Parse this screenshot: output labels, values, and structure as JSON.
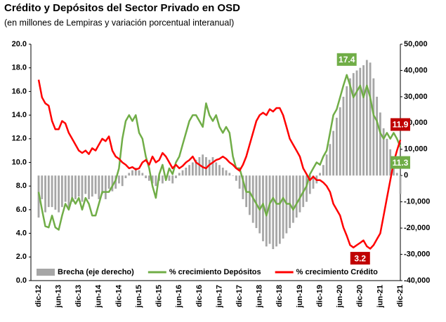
{
  "chart_data": {
    "type": "bar_line",
    "title": "Crédito y Depósitos del Sector Privado en OSD",
    "subtitle": "(en millones de Lempiras y variación porcentual interanual)",
    "categories": [
      "dic-12",
      null,
      null,
      null,
      null,
      null,
      "jun-13",
      null,
      null,
      null,
      null,
      null,
      "dic-13",
      null,
      null,
      null,
      null,
      null,
      "jun-14",
      null,
      null,
      null,
      null,
      null,
      "dic-14",
      null,
      null,
      null,
      null,
      null,
      "jun-15",
      null,
      null,
      null,
      null,
      null,
      "dic-15",
      null,
      null,
      null,
      null,
      null,
      "jun-16",
      null,
      null,
      null,
      null,
      null,
      "dic-16",
      null,
      null,
      null,
      null,
      null,
      "jun-17",
      null,
      null,
      null,
      null,
      null,
      "dic-17",
      null,
      null,
      null,
      null,
      null,
      "jun-18",
      null,
      null,
      null,
      null,
      null,
      "dic-18",
      null,
      null,
      null,
      null,
      null,
      "jun-19",
      null,
      null,
      null,
      null,
      null,
      "dic-19",
      null,
      null,
      null,
      null,
      null,
      "jun-20",
      null,
      null,
      null,
      null,
      null,
      "dic-20",
      null,
      null,
      null,
      null,
      null,
      "jun-21",
      null,
      null,
      null,
      null,
      null,
      "dic-21"
    ],
    "series": [
      {
        "name": "Brecha (eje derecho)",
        "type": "bar",
        "axis": "y2",
        "color": "#a6a6a6",
        "values": [
          -16000,
          -9000,
          -14000,
          -12000,
          -12000,
          -13000,
          -14000,
          -12000,
          -10000,
          -12000,
          -10000,
          -9000,
          -8000,
          -10000,
          -7000,
          -9000,
          -8000,
          -7000,
          -9000,
          -7000,
          -9000,
          -5000,
          -6000,
          -5000,
          -3000,
          -4000,
          -1000,
          1000,
          2000,
          3000,
          2000,
          1000,
          -1000,
          -2000,
          -3000,
          -4000,
          -2000,
          -3000,
          -1000,
          -2000,
          -3000,
          -1000,
          1000,
          2000,
          3000,
          4000,
          5000,
          6000,
          7000,
          8000,
          7000,
          6000,
          7000,
          5000,
          4000,
          3000,
          2000,
          1000,
          0,
          -2000,
          -5000,
          -9000,
          -12000,
          -15000,
          -18000,
          -20000,
          -22000,
          -25000,
          -27000,
          -26000,
          -28000,
          -27000,
          -26000,
          -24000,
          -22000,
          -20000,
          -18000,
          -16000,
          -14000,
          -12000,
          -10000,
          -7000,
          -5000,
          -3000,
          1000,
          4000,
          8000,
          12000,
          17000,
          22000,
          26000,
          30000,
          34000,
          37000,
          39000,
          40000,
          41000,
          42000,
          44000,
          43000,
          37000,
          30000,
          24000,
          18000,
          14000,
          10000,
          6000,
          1000,
          -7000
        ]
      },
      {
        "name": "% crecimiento Depósitos",
        "type": "line",
        "color": "#70ad47",
        "values": [
          7.5,
          6.0,
          4.6,
          4.5,
          5.5,
          4.5,
          4.3,
          5.5,
          6.5,
          6.0,
          7.0,
          6.5,
          7.0,
          6.0,
          7.0,
          6.5,
          5.5,
          5.5,
          6.5,
          7.5,
          7.5,
          7.5,
          8.0,
          8.5,
          9.5,
          12.0,
          13.5,
          14.0,
          13.5,
          14.0,
          12.5,
          12.0,
          10.5,
          9.5,
          8.0,
          7.0,
          9.0,
          9.8,
          8.5,
          9.5,
          9.0,
          10.0,
          10.5,
          11.5,
          12.5,
          13.5,
          14.0,
          14.0,
          13.5,
          13.0,
          15.0,
          14.0,
          13.5,
          14.0,
          13.0,
          12.5,
          13.0,
          12.5,
          10.5,
          9.5,
          9.5,
          8.5,
          7.5,
          7.5,
          7.0,
          6.5,
          6.0,
          6.5,
          5.5,
          6.5,
          7.0,
          6.5,
          6.5,
          7.0,
          6.5,
          6.5,
          6.0,
          6.5,
          7.0,
          7.5,
          8.0,
          9.0,
          9.5,
          10.0,
          9.8,
          10.5,
          11.0,
          12.5,
          14.0,
          14.5,
          15.5,
          16.5,
          17.4,
          16.5,
          15.5,
          16.0,
          16.5,
          15.5,
          16.5,
          15.5,
          14.0,
          13.5,
          12.5,
          12.0,
          12.5,
          12.0,
          12.5,
          12.0,
          11.3
        ],
        "value_labels": [
          null,
          null,
          null,
          null,
          null,
          null,
          null,
          null,
          null,
          null,
          null,
          null,
          null,
          null,
          null,
          null,
          null,
          null,
          null,
          null,
          null,
          null,
          null,
          null,
          null,
          null,
          null,
          null,
          null,
          null,
          null,
          null,
          null,
          null,
          null,
          null,
          null,
          null,
          null,
          null,
          null,
          null,
          null,
          null,
          null,
          null,
          null,
          null,
          null,
          null,
          null,
          null,
          null,
          null,
          null,
          null,
          null,
          null,
          null,
          null,
          null,
          null,
          null,
          null,
          null,
          null,
          null,
          null,
          null,
          null,
          null,
          null,
          null,
          null,
          null,
          null,
          null,
          null,
          null,
          null,
          null,
          null,
          null,
          null,
          null,
          null,
          null,
          null,
          null,
          null,
          null,
          null,
          "17.4",
          null,
          null,
          null,
          null,
          null,
          null,
          null,
          null,
          null,
          null,
          null,
          null,
          null,
          null,
          null,
          "11.3"
        ]
      },
      {
        "name": "% crecimiento Crédito",
        "type": "line",
        "color": "#ff0000",
        "values": [
          17.0,
          15.5,
          15.0,
          14.8,
          13.5,
          12.8,
          12.8,
          13.5,
          13.3,
          12.5,
          12.0,
          11.5,
          11.0,
          10.8,
          11.0,
          10.7,
          11.2,
          11.0,
          11.5,
          12.0,
          11.8,
          12.2,
          11.0,
          10.5,
          10.3,
          10.0,
          9.8,
          9.5,
          9.6,
          9.4,
          9.5,
          10.0,
          10.2,
          9.8,
          10.5,
          10.0,
          10.2,
          10.8,
          10.5,
          10.0,
          9.5,
          9.8,
          9.5,
          9.7,
          10.0,
          10.2,
          10.5,
          10.0,
          9.8,
          9.6,
          9.5,
          9.8,
          10.0,
          10.2,
          10.3,
          10.5,
          10.3,
          10.0,
          9.8,
          9.5,
          9.3,
          9.8,
          10.5,
          11.5,
          12.5,
          13.5,
          14.0,
          14.2,
          14.0,
          14.5,
          14.3,
          14.6,
          14.6,
          14.0,
          13.0,
          12.0,
          11.5,
          11.0,
          10.5,
          9.5,
          9.0,
          8.5,
          8.8,
          8.5,
          8.5,
          8.3,
          8.0,
          7.5,
          6.5,
          6.0,
          5.5,
          4.5,
          3.8,
          3.0,
          2.8,
          3.0,
          3.2,
          3.4,
          2.9,
          2.7,
          3.0,
          3.5,
          4.0,
          5.5,
          7.0,
          8.5,
          10.0,
          11.0,
          11.9
        ],
        "value_labels": [
          null,
          null,
          null,
          null,
          null,
          null,
          null,
          null,
          null,
          null,
          null,
          null,
          null,
          null,
          null,
          null,
          null,
          null,
          null,
          null,
          null,
          null,
          null,
          null,
          null,
          null,
          null,
          null,
          null,
          null,
          null,
          null,
          null,
          null,
          null,
          null,
          null,
          null,
          null,
          null,
          null,
          null,
          null,
          null,
          null,
          null,
          null,
          null,
          null,
          null,
          null,
          null,
          null,
          null,
          null,
          null,
          null,
          null,
          null,
          null,
          null,
          null,
          null,
          null,
          null,
          null,
          null,
          null,
          null,
          null,
          null,
          null,
          null,
          null,
          null,
          null,
          null,
          null,
          null,
          null,
          null,
          null,
          null,
          null,
          null,
          null,
          null,
          null,
          null,
          null,
          null,
          null,
          null,
          null,
          null,
          null,
          "3.2",
          null,
          null,
          null,
          null,
          null,
          null,
          null,
          null,
          null,
          null,
          null,
          "11.9"
        ]
      }
    ],
    "ylim": [
      0,
      20
    ],
    "yticks": [
      {
        "value": 0,
        "label": "0.0"
      },
      {
        "value": 2,
        "label": "2.0"
      },
      {
        "value": 4,
        "label": "4.0"
      },
      {
        "value": 6,
        "label": "6.0"
      },
      {
        "value": 8,
        "label": "8.0"
      },
      {
        "value": 10,
        "label": "10.0"
      },
      {
        "value": 12,
        "label": "12.0"
      },
      {
        "value": 14,
        "label": "14.0"
      },
      {
        "value": 16,
        "label": "16.0"
      },
      {
        "value": 18,
        "label": "18.0"
      },
      {
        "value": 20,
        "label": "20.0"
      }
    ],
    "y2lim": [
      -40000,
      50000
    ],
    "y2ticks": [
      {
        "value": -40000,
        "label": "-40,000"
      },
      {
        "value": -30000,
        "label": "-30,000"
      },
      {
        "value": -20000,
        "label": "-20,000"
      },
      {
        "value": -10000,
        "label": "-10,000"
      },
      0,
      {
        "value": 10000,
        "label": "10,000"
      },
      {
        "value": 20000,
        "label": "20,000"
      },
      {
        "value": 30000,
        "label": "30,000"
      },
      {
        "value": 40000,
        "label": "40,000"
      },
      {
        "value": 50000,
        "label": "50,000"
      }
    ],
    "legend": "bottom"
  }
}
